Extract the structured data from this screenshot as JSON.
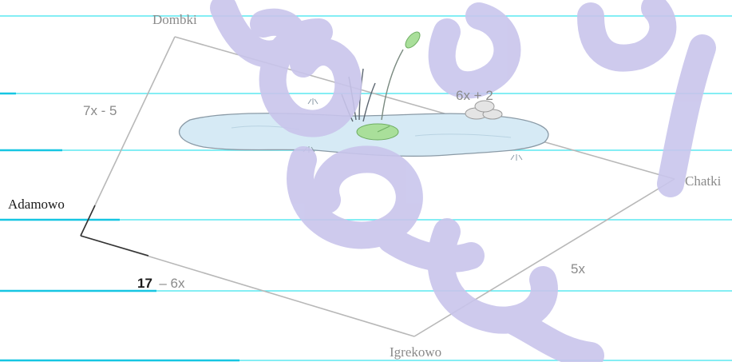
{
  "places": {
    "dombki": "Dombki",
    "adamowo": "Adamowo",
    "chatki": "Chatki",
    "igrekowo": "Igrekowo"
  },
  "sides": {
    "dombki_adamowo": "7x - 5",
    "dombki_chatki": "6x + 2",
    "chatki_igrekowo": "5x",
    "adamowo_igrekowo_number": "17",
    "adamowo_igrekowo_rest": "– 6x"
  },
  "colors": {
    "ruled_line": "#5ce8f0",
    "edge": "#b8b8b8",
    "watermark": "#c9c5ec",
    "pond_fill": "#d6eaf5",
    "pond_stroke": "#8a9aa6",
    "lily_pad": "#a9df9a"
  },
  "icons": {
    "pond": "pond-icon",
    "reeds": "reeds-icon",
    "stones": "stones-icon",
    "lily_pad": "lily-pad-icon"
  }
}
